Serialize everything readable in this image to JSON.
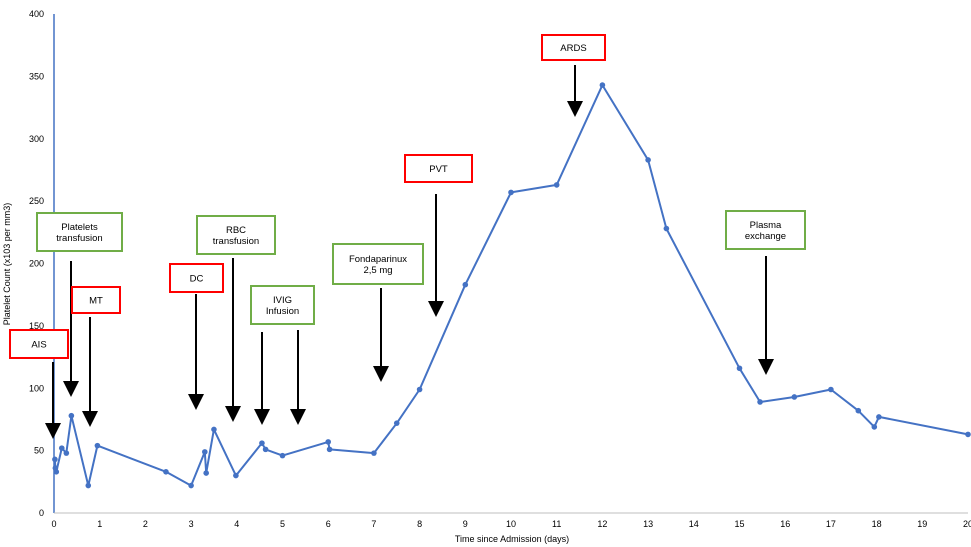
{
  "chart_data": {
    "type": "line",
    "title": "",
    "xlabel": "Time since Admission (days)",
    "ylabel": "Platelet Count (x103 per mm3)",
    "xlim": [
      0,
      20
    ],
    "ylim": [
      0,
      400
    ],
    "x_ticks": [
      0,
      1,
      2,
      3,
      4,
      5,
      6,
      7,
      8,
      9,
      10,
      11,
      12,
      13,
      14,
      15,
      16,
      17,
      18,
      19,
      20
    ],
    "y_ticks": [
      0,
      50,
      100,
      150,
      200,
      250,
      300,
      350,
      400
    ],
    "grid": false,
    "line_color": "#4472C4",
    "series": [
      {
        "name": "",
        "points": [
          [
            0.02,
            43
          ],
          [
            0.03,
            36
          ],
          [
            0.05,
            33
          ],
          [
            0.17,
            52
          ],
          [
            0.27,
            48
          ],
          [
            0.38,
            78
          ],
          [
            0.75,
            22
          ],
          [
            0.95,
            54
          ],
          [
            2.45,
            33
          ],
          [
            3.0,
            22
          ],
          [
            3.3,
            49
          ],
          [
            3.33,
            32
          ],
          [
            3.5,
            67
          ],
          [
            3.98,
            30
          ],
          [
            4.55,
            56
          ],
          [
            4.63,
            51
          ],
          [
            5.0,
            46
          ],
          [
            6.0,
            57
          ],
          [
            6.03,
            51
          ],
          [
            7.0,
            48
          ],
          [
            7.5,
            72
          ],
          [
            8.0,
            99
          ],
          [
            9.0,
            183
          ],
          [
            10.0,
            257
          ],
          [
            11.0,
            263
          ],
          [
            12.0,
            343
          ],
          [
            13.0,
            283
          ],
          [
            13.4,
            228
          ],
          [
            15.0,
            116
          ],
          [
            15.45,
            89
          ],
          [
            16.2,
            93
          ],
          [
            17.0,
            99
          ],
          [
            17.6,
            82
          ],
          [
            17.95,
            69
          ],
          [
            18.05,
            77
          ],
          [
            20.0,
            63
          ]
        ]
      }
    ],
    "annotations": [
      {
        "lines": [
          "AIS"
        ],
        "category": "red",
        "x": 0.0
      },
      {
        "lines": [
          "Platelets",
          "transfusion"
        ],
        "category": "green",
        "x": 0.4
      },
      {
        "lines": [
          "MT"
        ],
        "category": "red",
        "x": 0.8
      },
      {
        "lines": [
          "DC"
        ],
        "category": "red",
        "x": 3.1
      },
      {
        "lines": [
          "RBC",
          "transfusion"
        ],
        "category": "green",
        "x": 3.95
      },
      {
        "lines": [
          "IVIG",
          "Infusion"
        ],
        "category": "green",
        "x": 4.6
      },
      {
        "lines": [
          "Fondaparinux",
          "2,5 mg"
        ],
        "category": "green",
        "x": 7.2
      },
      {
        "lines": [
          "PVT"
        ],
        "category": "red",
        "x": 8.3
      },
      {
        "lines": [
          "ARDS"
        ],
        "category": "red",
        "x": 11.3
      },
      {
        "lines": [
          "Plasma",
          "exchange"
        ],
        "category": "green",
        "x": 15.5
      }
    ],
    "colors": {
      "red_box": "#FF0000",
      "green_box": "#70AD47",
      "arrow": "#000000",
      "axis": "#4472C4"
    }
  }
}
